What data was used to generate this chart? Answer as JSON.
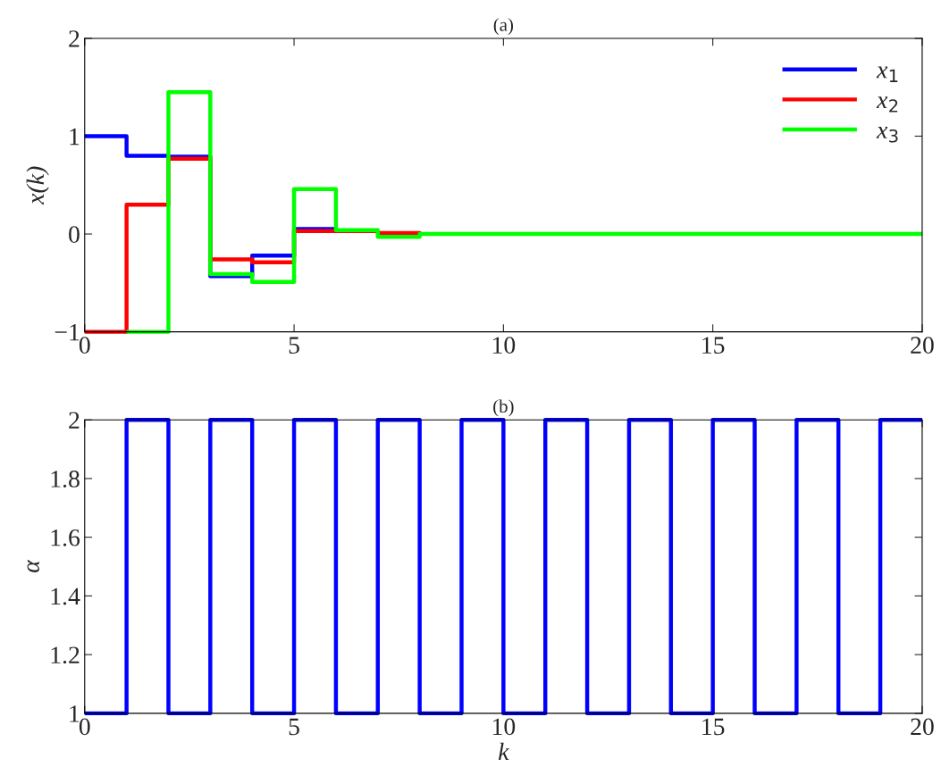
{
  "chart_data": [
    {
      "type": "step",
      "title": "(a)",
      "ylabel": "x(k)",
      "x": [
        0,
        1,
        2,
        3,
        4,
        5,
        6,
        7,
        8,
        9,
        10,
        11,
        12,
        13,
        14,
        15,
        16,
        17,
        18,
        19,
        20
      ],
      "series": [
        {
          "name": "x$_{1}$",
          "color": "#0000ff",
          "values": [
            1.0,
            0.8,
            0.79,
            -0.43,
            -0.22,
            0.05,
            0.03,
            null,
            null,
            null,
            null,
            null,
            null,
            null,
            null,
            null,
            null,
            null,
            null,
            null,
            null
          ]
        },
        {
          "name": "x$_{2}$",
          "color": "#ff0000",
          "values": [
            -1.0,
            0.3,
            0.77,
            -0.26,
            -0.29,
            0.03,
            0.03,
            0.01,
            0,
            null,
            null,
            null,
            null,
            null,
            null,
            null,
            null,
            null,
            null,
            null,
            null
          ]
        },
        {
          "name": "x$_{3}$",
          "color": "#00ff00",
          "values": [
            null,
            -1.0,
            1.45,
            -0.41,
            -0.49,
            0.46,
            0.04,
            -0.03,
            0,
            0,
            0,
            0,
            0,
            0,
            0,
            0,
            0,
            0,
            0,
            0,
            0
          ]
        }
      ],
      "xlim": [
        0,
        20
      ],
      "xticks": [
        0,
        5,
        10,
        15,
        20
      ],
      "ylim": [
        -1,
        2
      ],
      "yticks": [
        {
          "value": -1,
          "label": "−1"
        },
        0,
        1,
        2
      ],
      "legend": "top right",
      "grid": false
    },
    {
      "type": "step",
      "title": "(b)",
      "xlabel": "k",
      "ylabel": "α",
      "x": [
        0,
        1,
        2,
        3,
        4,
        5,
        6,
        7,
        8,
        9,
        10,
        11,
        12,
        13,
        14,
        15,
        16,
        17,
        18,
        19,
        20
      ],
      "series": [
        {
          "color": "#0000ff",
          "values": [
            1,
            2,
            1,
            2,
            1,
            2,
            1,
            2,
            1,
            2,
            1,
            2,
            1,
            2,
            1,
            2,
            1,
            2,
            1,
            2,
            2
          ]
        }
      ],
      "xlim": [
        0,
        20
      ],
      "xticks": [
        0,
        5,
        10,
        15,
        20
      ],
      "ylim": [
        1,
        2
      ],
      "yticks": [
        1,
        1.2,
        1.4,
        1.6,
        1.8,
        2
      ],
      "grid": false
    }
  ]
}
